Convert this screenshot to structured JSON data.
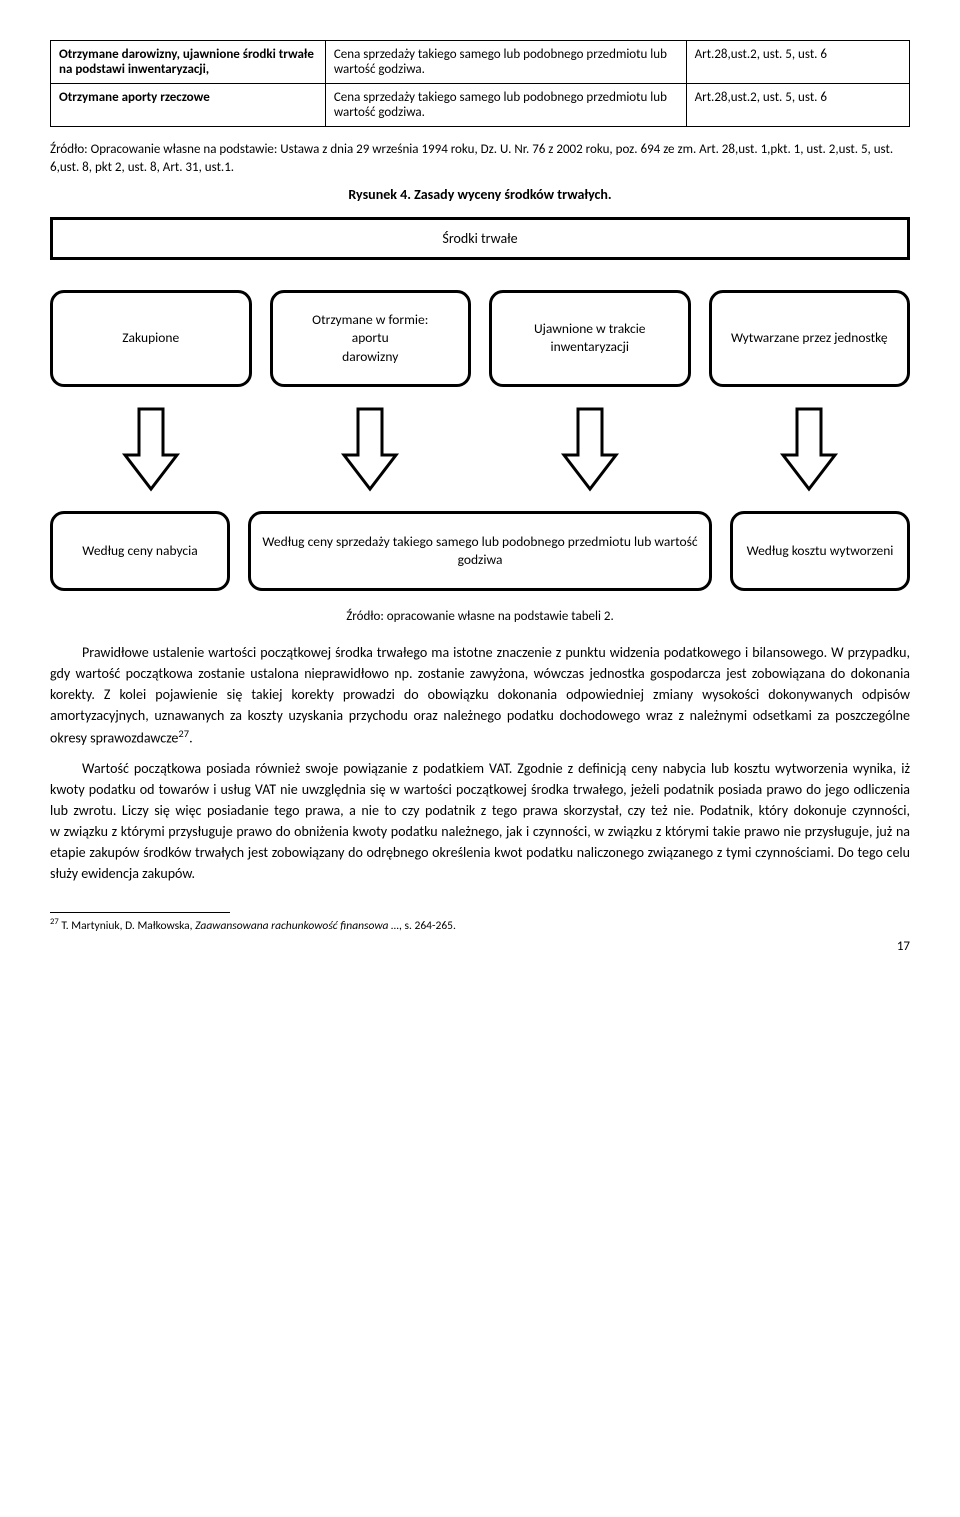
{
  "table": {
    "rows": [
      {
        "c1": "Otrzymane darowizny, ujawnione środki trwałe na podstawi inwentaryzacji,",
        "c1_bold": true,
        "c2": "Cena sprzedaży takiego samego lub podobnego przedmiotu lub wartość godziwa.",
        "c3": "Art.28,ust.2, ust. 5, ust. 6"
      },
      {
        "c1": "Otrzymane aporty rzeczowe",
        "c1_bold": true,
        "c2": "Cena sprzedaży takiego samego lub podobnego przedmiotu lub wartość godziwa.",
        "c3": "Art.28,ust.2, ust. 5, ust. 6"
      }
    ]
  },
  "source1": "Źródło: Opracowanie własne na podstawie: Ustawa z dnia 29 września 1994 roku, Dz. U. Nr. 76 z 2002 roku, poz. 694 ze zm. Art. 28,ust. 1,pkt. 1, ust. 2,ust. 5, ust. 6,ust. 8, pkt 2, ust. 8, Art. 31, ust.1.",
  "fig_title": "Rysunek 4. Zasady wyceny środków trwałych.",
  "diagram": {
    "banner": "Środki trwałe",
    "top": [
      "Zakupione",
      "Otrzymane w formie:\naportu\ndarowizny",
      "Ujawnione w trakcie inwentaryzacji",
      "Wytwarzane przez jednostkę"
    ],
    "bottom": [
      "Według ceny nabycia",
      "Według ceny sprzedaży takiego samego lub podobnego przedmiotu lub wartość godziwa",
      "Według kosztu wytworzeni"
    ]
  },
  "source2": "Źródło: opracowanie własne na podstawie tabeli 2.",
  "para1": "Prawidłowe ustalenie wartości początkowej środka trwałego ma istotne znaczenie z punktu widzenia podatkowego i bilansowego. W przypadku, gdy wartość początkowa zostanie ustalona nieprawidłowo np. zostanie zawyżona, wówczas jednostka gospodarcza jest zobowiązana do dokonania korekty. Z kolei pojawienie się takiej korekty prowadzi do obowiązku dokonania odpowiedniej zmiany wysokości dokonywanych odpisów amortyzacyjnych, uznawanych za koszty uzyskania przychodu oraz należnego podatku dochodowego wraz z należnymi odsetkami za poszczególne okresy sprawozdawcze",
  "para1_sup": "27",
  "para1_tail": ".",
  "para2": "Wartość początkowa posiada również swoje powiązanie z podatkiem VAT. Zgodnie z definicją ceny nabycia lub kosztu wytworzenia wynika, iż kwoty podatku od towarów i usług VAT nie uwzględnia się w wartości początkowej środka trwałego, jeżeli podatnik posiada prawo do jego odliczenia lub zwrotu. Liczy się więc posiadanie tego prawa, a nie to czy podatnik z tego prawa skorzystał, czy też nie. Podatnik, który dokonuje czynności, w związku z którymi przysługuje prawo do obniżenia kwoty podatku należnego, jak i czynności, w związku z którymi takie prawo nie przysługuje, już na etapie zakupów środków trwałych jest zobowiązany do odrębnego określenia kwot podatku naliczonego związanego z tymi czynnościami. Do tego celu służy ewidencja zakupów.",
  "footnote_num": "27",
  "footnote_text": " T. Martyniuk, D. Małkowska, ",
  "footnote_italic": "Zaawansowana rachunkowość finansowa …",
  "footnote_tail": ", s. 264-265.",
  "page": "17"
}
